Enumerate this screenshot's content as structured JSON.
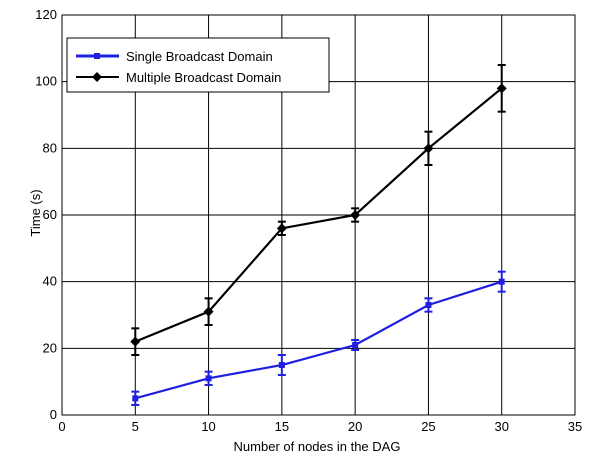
{
  "chart_data": {
    "type": "line",
    "title": "",
    "xlabel": "Number of nodes in the DAG",
    "ylabel": "Time (s)",
    "xlim": [
      0,
      35
    ],
    "ylim": [
      0,
      120
    ],
    "xticks": [
      0,
      5,
      10,
      15,
      20,
      25,
      30,
      35
    ],
    "yticks": [
      0,
      20,
      40,
      60,
      80,
      100,
      120
    ],
    "grid": true,
    "legend_position": "top-left",
    "x": [
      5,
      10,
      15,
      20,
      25,
      30
    ],
    "series": [
      {
        "name": "Single Broadcast Domain",
        "color": "#1f1fe0",
        "marker": "square",
        "values": [
          5,
          11,
          15,
          21,
          33,
          40
        ],
        "error": [
          2,
          2,
          3,
          1.5,
          2,
          3
        ]
      },
      {
        "name": "Multiple Broadcast Domain",
        "color": "#000000",
        "marker": "diamond",
        "values": [
          22,
          31,
          56,
          60,
          80,
          98
        ],
        "error": [
          4,
          4,
          2,
          2,
          5,
          7
        ]
      }
    ]
  }
}
